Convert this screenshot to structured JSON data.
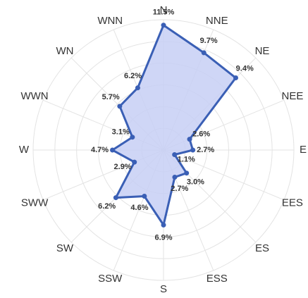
{
  "chart_data": {
    "type": "radar",
    "categories": [
      "N",
      "NNE",
      "NE",
      "NEE",
      "E",
      "EES",
      "ES",
      "ESS",
      "S",
      "SSW",
      "SW",
      "SWW",
      "W",
      "WWN",
      "WN",
      "WNN"
    ],
    "values": [
      11.5,
      9.7,
      9.4,
      2.6,
      2.7,
      1.1,
      3.0,
      2.7,
      6.9,
      4.6,
      6.2,
      2.9,
      4.7,
      3.1,
      5.7,
      6.2
    ],
    "value_labels": [
      "11.5%",
      "9.7%",
      "9.4%",
      "2.6%",
      "2.7%",
      "1.1%",
      "3.0%",
      "2.7%",
      "6.9%",
      "4.6%",
      "6.2%",
      "2.9%",
      "4.7%",
      "3.1%",
      "5.7%",
      "6.2%"
    ],
    "color": "#3a5fb5",
    "fill": "#c7cff5",
    "rlim": [
      0,
      12
    ]
  }
}
